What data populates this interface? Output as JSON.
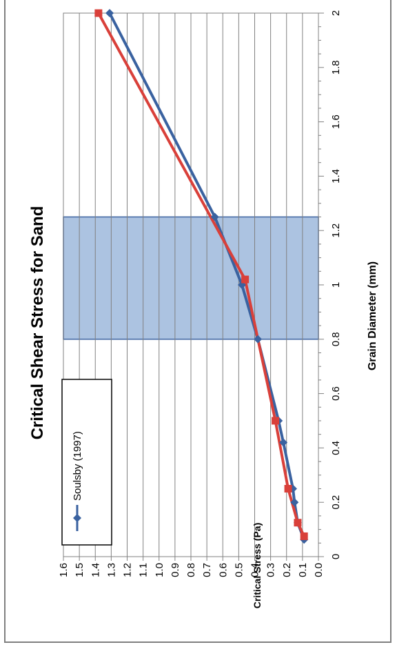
{
  "chart_data": {
    "type": "line",
    "title": "Critical Shear Stress for Sand",
    "xlabel": "Grain Diameter (mm)",
    "ylabel": "Critical Stress (Pa)",
    "xlim": [
      0,
      2
    ],
    "ylim": [
      0,
      1.6
    ],
    "x_ticks": [
      "0",
      "0.2",
      "0.4",
      "0.6",
      "0.8",
      "1",
      "1.2",
      "1.4",
      "1.6",
      "1.8",
      "2"
    ],
    "y_ticks": [
      "0.0",
      "0.1",
      "0.2",
      "0.3",
      "0.4",
      "0.5",
      "0.6",
      "0.7",
      "0.8",
      "0.9",
      "1.0",
      "1.1",
      "1.2",
      "1.3",
      "1.4",
      "1.5",
      "1.6"
    ],
    "grid": true,
    "legend_position": "top-left",
    "highlight_band": {
      "x_from": 0.8,
      "x_to": 1.25,
      "color": "#9db8dc"
    },
    "series": [
      {
        "name": "Soulsby (1997)",
        "color": "#3a62a0",
        "marker": "diamond",
        "x": [
          0.0625,
          0.125,
          0.2,
          0.25,
          0.42,
          0.5,
          0.8,
          1.0,
          1.25,
          2.0
        ],
        "y": [
          0.09,
          0.13,
          0.15,
          0.16,
          0.22,
          0.25,
          0.38,
          0.48,
          0.65,
          1.31
        ]
      },
      {
        "color": "#d9403a",
        "marker": "square",
        "x": [
          0.075,
          0.125,
          0.25,
          0.5,
          1.02,
          2.0
        ],
        "y": [
          0.09,
          0.13,
          0.19,
          0.27,
          0.46,
          1.38
        ]
      }
    ]
  }
}
